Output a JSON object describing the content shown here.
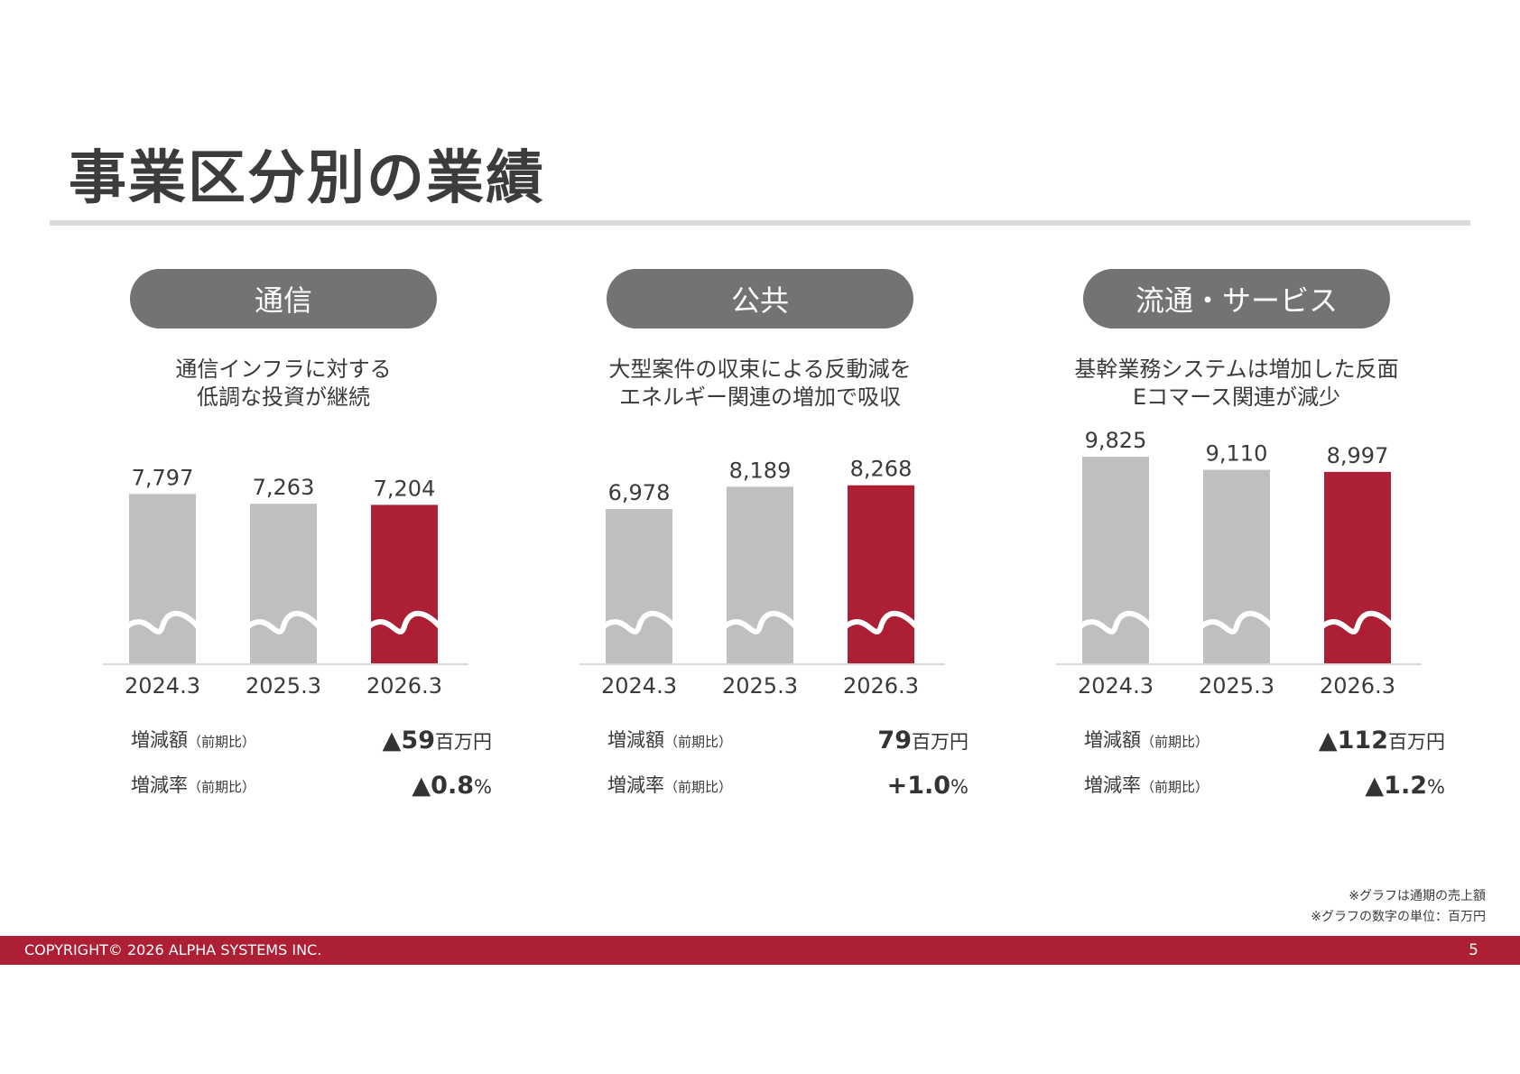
{
  "title": "事業区分別の業績",
  "notes": [
    "※グラフは通期の売上額",
    "※グラフの数字の単位：百万円"
  ],
  "footer": {
    "copyright": "COPYRIGHT© 2026 ALPHA SYSTEMS INC.",
    "page": "5"
  },
  "colors": {
    "prior_bar": "#bfbfbf",
    "current_bar": "#ad1f35",
    "pill": "#737373",
    "footer": "#ad1f35"
  },
  "labels": {
    "change_amount": "増減額",
    "change_rate": "増減率",
    "vs_prior": "（前期比）",
    "million_yen": "百万円",
    "percent": "%"
  },
  "chart_data": [
    {
      "type": "bar",
      "title": "通信",
      "subtitle": [
        "通信インフラに対する",
        "低調な投資が継続"
      ],
      "categories": [
        "2024.3",
        "2025.3",
        "2026.3"
      ],
      "values": [
        7797,
        7263,
        7204
      ],
      "value_labels": [
        "7,797",
        "7,263",
        "7,204"
      ],
      "axis_break": true,
      "change_amount": "▲59",
      "change_rate": "▲0.8"
    },
    {
      "type": "bar",
      "title": "公共",
      "subtitle": [
        "大型案件の収束による反動減を",
        "エネルギー関連の増加で吸収"
      ],
      "categories": [
        "2024.3",
        "2025.3",
        "2026.3"
      ],
      "values": [
        6978,
        8189,
        8268
      ],
      "value_labels": [
        "6,978",
        "8,189",
        "8,268"
      ],
      "axis_break": true,
      "change_amount": "79",
      "change_rate": "+1.0"
    },
    {
      "type": "bar",
      "title": "流通・サービス",
      "subtitle": [
        "基幹業務システムは増加した反面",
        "Eコマース関連が減少"
      ],
      "categories": [
        "2024.3",
        "2025.3",
        "2026.3"
      ],
      "values": [
        9825,
        9110,
        8997
      ],
      "value_labels": [
        "9,825",
        "9,110",
        "8,997"
      ],
      "axis_break": true,
      "change_amount": "▲112",
      "change_rate": "▲1.2"
    }
  ]
}
